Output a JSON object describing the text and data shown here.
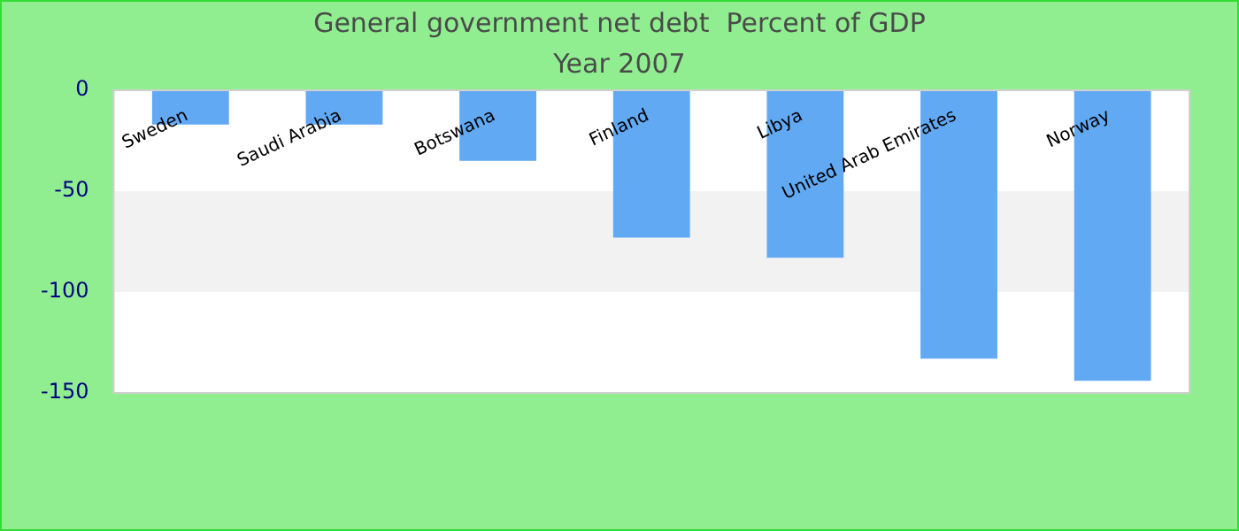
{
  "chart_data": {
    "type": "bar",
    "title": "General government net debt  Percent of GDP",
    "subtitle": "Year 2007",
    "categories": [
      "Sweden",
      "Saudi Arabia",
      "Botswana",
      "Finland",
      "Libya",
      "United Arab Emirates",
      "Norway"
    ],
    "values": [
      -17,
      -17,
      -35,
      -73,
      -83,
      -133,
      -144
    ],
    "color": "#62a9f4",
    "ylim": [
      -150,
      0
    ],
    "yticks": [
      -150,
      -100,
      -50,
      0
    ],
    "grid": false,
    "legend": false,
    "bands": [
      {
        "axis": "y",
        "from": -100,
        "to": -50,
        "color": "#f2f2f2"
      }
    ]
  }
}
